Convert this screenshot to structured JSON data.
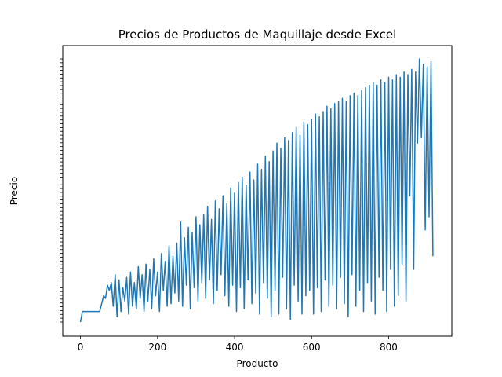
{
  "chart_data": {
    "type": "line",
    "title": "Precios de Productos de Maquillaje desde Excel",
    "xlabel": "Producto",
    "ylabel": "Precio",
    "x_ticks": [
      0,
      200,
      400,
      600,
      800
    ],
    "xlim": [
      -46,
      964
    ],
    "series": [
      {
        "color": "#1f77b4",
        "x": [
          0,
          5,
          10,
          20,
          30,
          40,
          50,
          55,
          60,
          65,
          70,
          75,
          80,
          85,
          90,
          95,
          100,
          105,
          110,
          115,
          120,
          125,
          130,
          135,
          140,
          145,
          150,
          155,
          160,
          165,
          170,
          175,
          180,
          185,
          190,
          195,
          200,
          205,
          210,
          215,
          220,
          225,
          230,
          235,
          240,
          245,
          250,
          255,
          260,
          265,
          270,
          275,
          280,
          285,
          290,
          295,
          300,
          305,
          310,
          315,
          320,
          325,
          330,
          335,
          340,
          345,
          350,
          355,
          360,
          365,
          370,
          375,
          380,
          385,
          390,
          395,
          400,
          405,
          410,
          415,
          420,
          425,
          430,
          435,
          440,
          445,
          450,
          455,
          460,
          465,
          470,
          475,
          480,
          485,
          490,
          495,
          500,
          505,
          510,
          515,
          520,
          525,
          530,
          535,
          540,
          545,
          550,
          555,
          560,
          565,
          570,
          575,
          580,
          585,
          590,
          595,
          600,
          605,
          610,
          615,
          620,
          625,
          630,
          635,
          640,
          645,
          650,
          655,
          660,
          665,
          670,
          675,
          680,
          685,
          690,
          695,
          700,
          705,
          710,
          715,
          720,
          725,
          730,
          735,
          740,
          745,
          750,
          755,
          760,
          765,
          770,
          775,
          780,
          785,
          790,
          795,
          800,
          805,
          810,
          815,
          820,
          825,
          830,
          835,
          840,
          845,
          850,
          855,
          860,
          865,
          870,
          875,
          880,
          885,
          890,
          895,
          900,
          905,
          910,
          915
        ],
        "y": [
          0,
          4,
          4,
          4,
          4,
          4,
          4,
          7,
          10,
          9,
          14,
          12,
          15,
          6,
          18,
          2,
          16,
          4,
          13,
          8,
          17,
          3,
          19,
          6,
          15,
          5,
          21,
          9,
          18,
          4,
          22,
          8,
          20,
          5,
          24,
          10,
          19,
          4,
          26,
          12,
          23,
          6,
          29,
          7,
          25,
          11,
          30,
          8,
          38,
          6,
          32,
          14,
          36,
          5,
          34,
          13,
          40,
          8,
          37,
          15,
          41,
          9,
          44,
          16,
          39,
          7,
          46,
          12,
          43,
          18,
          48,
          10,
          45,
          6,
          51,
          14,
          49,
          4,
          53,
          13,
          55,
          5,
          52,
          16,
          57,
          7,
          54,
          11,
          60,
          3,
          58,
          15,
          63,
          9,
          61,
          2,
          65,
          12,
          68,
          3,
          66,
          17,
          70,
          5,
          69,
          1,
          72,
          14,
          74,
          8,
          71,
          3,
          76,
          10,
          75,
          12,
          77,
          3,
          79,
          13,
          78,
          4,
          80,
          16,
          82,
          6,
          81,
          14,
          83,
          5,
          84,
          17,
          85,
          7,
          84,
          2,
          86,
          18,
          87,
          6,
          86,
          12,
          88,
          4,
          89,
          15,
          90,
          8,
          91,
          3,
          90,
          17,
          92,
          12,
          91,
          4,
          93,
          20,
          92,
          6,
          94,
          10,
          93,
          22,
          95,
          8,
          94,
          48,
          96,
          20,
          95,
          68,
          100,
          70,
          98,
          35,
          97,
          40,
          99,
          25
        ],
        "y_note": "relative price level read from chart height, 0 = lowest tick, 100 = highest tick"
      }
    ]
  }
}
